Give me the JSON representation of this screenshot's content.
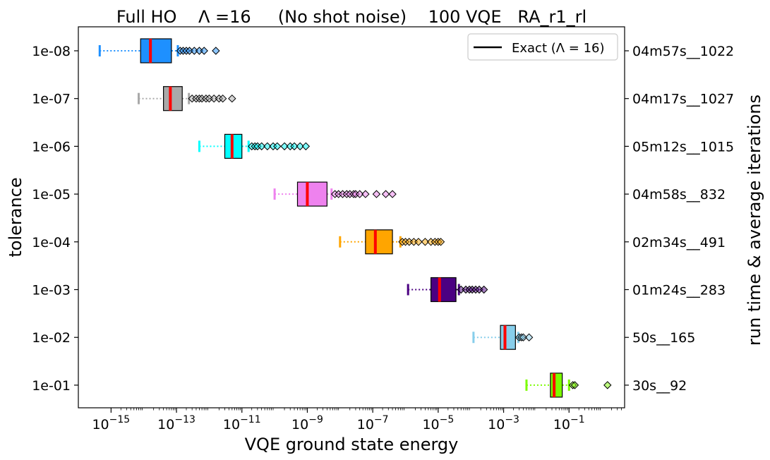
{
  "chart_data": {
    "type": "box",
    "title": "Full HO    Λ =16     (No shot noise)    100 VQE   RA_r1_rl",
    "xlabel": "VQE ground state energy",
    "ylabel": "tolerance",
    "ylabel_right": "run time & average iterations",
    "x_scale": "log",
    "xlim": [
      1e-16,
      5
    ],
    "x_ticks": [
      {
        "value": 1e-15,
        "base": "10",
        "exp": "−15"
      },
      {
        "value": 1e-13,
        "base": "10",
        "exp": "−13"
      },
      {
        "value": 1e-11,
        "base": "10",
        "exp": "−11"
      },
      {
        "value": 1e-09,
        "base": "10",
        "exp": "−9"
      },
      {
        "value": 1e-07,
        "base": "10",
        "exp": "−7"
      },
      {
        "value": 1e-05,
        "base": "10",
        "exp": "−5"
      },
      {
        "value": 0.001,
        "base": "10",
        "exp": "−3"
      },
      {
        "value": 0.1,
        "base": "10",
        "exp": "−1"
      }
    ],
    "legend": {
      "label": "Exact (Λ = 16)",
      "placement": "top-right"
    },
    "grid": false,
    "series": [
      {
        "tolerance": "1e-08",
        "right_label": "04m57s__1022",
        "color": "#1e90ff",
        "whisker_low": 4.5e-16,
        "q1": 8e-15,
        "median": 1.6e-14,
        "q3": 7e-14,
        "whisker_high": 1.1e-13,
        "fliers": [
          1.3e-13,
          1.6e-13,
          2e-13,
          2.5e-13,
          3.5e-13,
          5e-13,
          7e-13,
          1.6e-12
        ]
      },
      {
        "tolerance": "1e-07",
        "right_label": "04m17s__1027",
        "color": "#a9a9a9",
        "whisker_low": 7e-15,
        "q1": 4e-14,
        "median": 6.5e-14,
        "q3": 1.5e-13,
        "whisker_high": 2.4e-13,
        "fliers": [
          3e-13,
          4e-13,
          5e-13,
          6e-13,
          8e-13,
          1e-12,
          1.4e-12,
          2e-12,
          2.6e-12,
          5e-12
        ]
      },
      {
        "tolerance": "1e-06",
        "right_label": "05m12s__1015",
        "color": "#00ffff",
        "whisker_low": 5e-13,
        "q1": 3e-12,
        "median": 5e-12,
        "q3": 1e-11,
        "whisker_high": 1.6e-11,
        "fliers": [
          2e-11,
          2.5e-11,
          3e-11,
          4e-11,
          6e-11,
          9e-11,
          1.2e-10,
          2e-10,
          3e-10,
          4e-10,
          6e-10,
          9e-10
        ]
      },
      {
        "tolerance": "1e-05",
        "right_label": "04m58s__832",
        "color": "#ee82ee",
        "whisker_low": 1e-10,
        "q1": 5e-10,
        "median": 1e-09,
        "q3": 4e-09,
        "whisker_high": 5.5e-09,
        "fliers": [
          7e-09,
          9e-09,
          1.2e-08,
          1.6e-08,
          2e-08,
          2.6e-08,
          3e-08,
          4e-08,
          6e-08,
          1.3e-07,
          2.5e-07,
          4e-07
        ]
      },
      {
        "tolerance": "1e-04",
        "right_label": "02m34s__491",
        "color": "#ffa500",
        "whisker_low": 1e-08,
        "q1": 6e-08,
        "median": 1.2e-07,
        "q3": 4e-07,
        "whisker_high": 7e-07,
        "fliers": [
          8e-07,
          1e-06,
          1.3e-06,
          1.8e-06,
          2.5e-06,
          4e-06,
          6e-06,
          8e-06,
          1e-05,
          1.2e-05
        ]
      },
      {
        "tolerance": "1e-03",
        "right_label": "01m24s__283",
        "color": "#4b0082",
        "whisker_low": 1.2e-06,
        "q1": 6e-06,
        "median": 1.1e-05,
        "q3": 3.5e-05,
        "whisker_high": 4.3e-05,
        "fliers": [
          5e-05,
          7e-05,
          9e-05,
          0.00011,
          0.00014,
          0.00018,
          0.00025
        ]
      },
      {
        "tolerance": "1e-02",
        "right_label": "50s__165",
        "color": "#87ceeb",
        "whisker_low": 0.00012,
        "q1": 0.0008,
        "median": 0.0011,
        "q3": 0.0023,
        "whisker_high": 0.0028,
        "fliers": [
          0.003,
          0.0035,
          0.004,
          0.006
        ]
      },
      {
        "tolerance": "1e-01",
        "right_label": "30s__92",
        "color": "#7cfc00",
        "whisker_low": 0.005,
        "q1": 0.027,
        "median": 0.035,
        "q3": 0.062,
        "whisker_high": 0.1,
        "fliers": [
          0.13,
          0.15,
          1.5
        ]
      }
    ]
  }
}
